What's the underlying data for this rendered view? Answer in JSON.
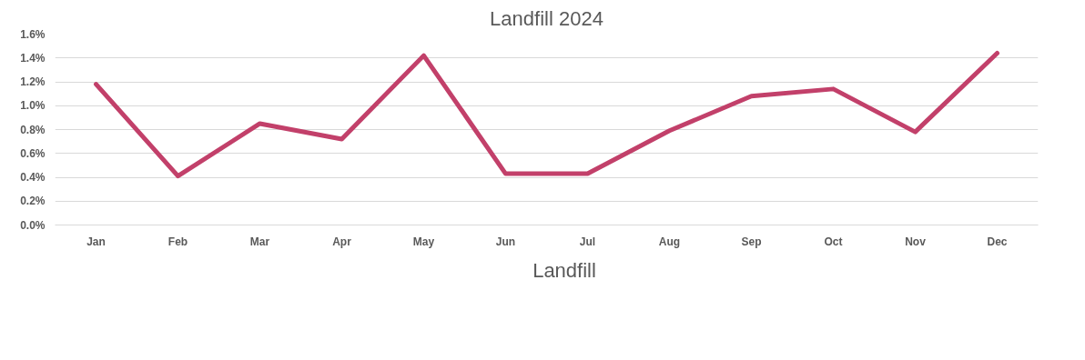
{
  "chart_data": {
    "type": "line",
    "title": "Landfill 2024",
    "categories": [
      "Jan",
      "Feb",
      "Mar",
      "Apr",
      "May",
      "Jun",
      "Jul",
      "Aug",
      "Sep",
      "Oct",
      "Nov",
      "Dec"
    ],
    "series": [
      {
        "name": "Landfill",
        "color": "#c2406a",
        "values": [
          1.18,
          0.41,
          0.85,
          0.72,
          1.42,
          0.43,
          0.43,
          0.79,
          1.08,
          1.14,
          0.78,
          1.44
        ]
      }
    ],
    "ylim": [
      0,
      1.6
    ],
    "yticks": [
      {
        "value": 0,
        "label": "0.0%"
      },
      {
        "value": 0.2,
        "label": "0.2%"
      },
      {
        "value": 0.4,
        "label": "0.4%"
      },
      {
        "value": 0.6,
        "label": "0.6%"
      },
      {
        "value": 0.8,
        "label": "0.8%"
      },
      {
        "value": 1.0,
        "label": "1.0%"
      },
      {
        "value": 1.2,
        "label": "1.2%"
      },
      {
        "value": 1.4,
        "label": "1.4%"
      },
      {
        "value": 1.6,
        "label": "1.6%"
      }
    ],
    "grid": "y",
    "legend": "bottom",
    "marker": "none",
    "line_style": "solid"
  }
}
